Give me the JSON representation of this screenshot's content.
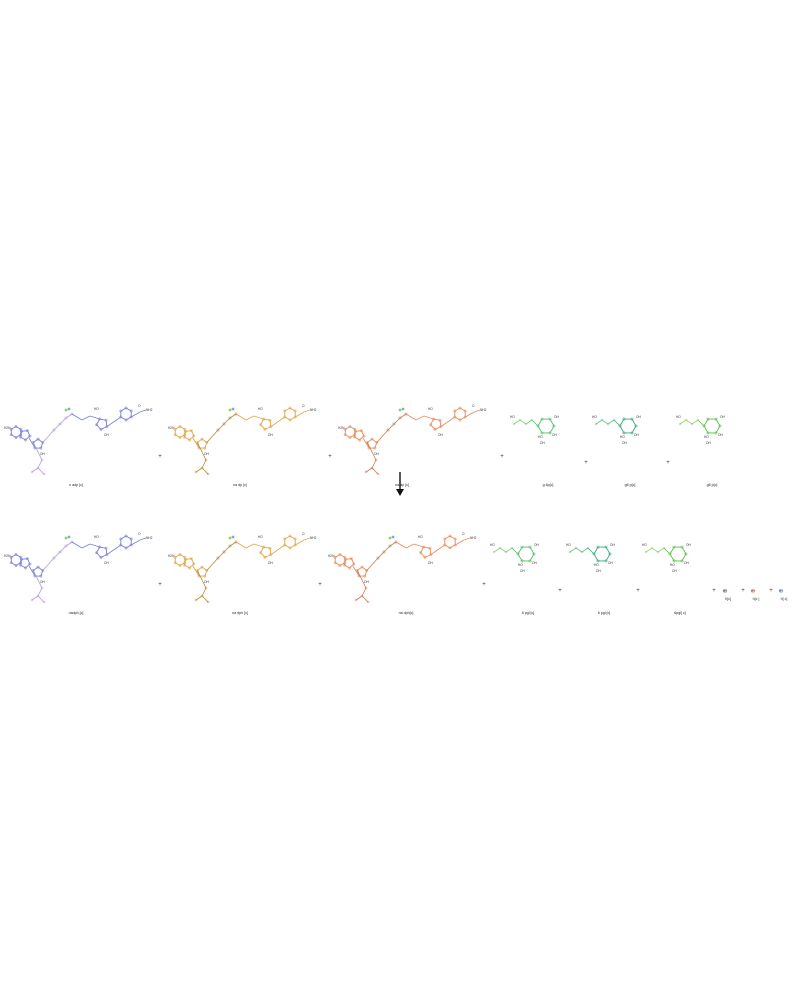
{
  "reaction": {
    "arrow": "reaction-arrow",
    "plus_sign": "+",
    "reactants": [
      {
        "label": "n adp [c]",
        "color": "#7b7fd6",
        "accent": "#b79ad8",
        "kind": "nucleotide"
      },
      {
        "label": "na dp [c]",
        "color": "#e0a54a",
        "accent": "#b08a3a",
        "kind": "nucleotide"
      },
      {
        "label": "na dp [c]",
        "color": "#e78b5a",
        "accent": "#c27a5a",
        "kind": "nucleotide"
      },
      {
        "label": "g 6p[c]",
        "color": "#4fbf6a",
        "accent": "#7ed67a",
        "kind": "sugar"
      },
      {
        "label": "g6 p[c]",
        "color": "#3aa87a",
        "accent": "#6cc48a",
        "kind": "sugar"
      },
      {
        "label": "g6 p[c]",
        "color": "#5bbf4a",
        "accent": "#9ad07a",
        "kind": "sugar"
      }
    ],
    "products": [
      {
        "label": "nadph [c]",
        "color": "#7b7fd6",
        "accent": "#b79ad8",
        "kind": "nucleotide"
      },
      {
        "label": "na dph [c]",
        "color": "#e0a54a",
        "accent": "#b08a3a",
        "kind": "nucleotide"
      },
      {
        "label": "na dph[c]",
        "color": "#e78b5a",
        "accent": "#c27a5a",
        "kind": "nucleotide"
      },
      {
        "label": "6 pgl [c]",
        "color": "#4fbf6a",
        "accent": "#7ed67a",
        "kind": "sugar"
      },
      {
        "label": "6 pgl [c]",
        "color": "#3aa87a",
        "accent": "#6cc48a",
        "kind": "sugar"
      },
      {
        "label": "6pgl[ c]",
        "color": "#5bbf4a",
        "accent": "#9ad07a",
        "kind": "sugar"
      },
      {
        "label": "h[c]",
        "color": "#7b7fd6",
        "accent": "#7b7fd6",
        "kind": "proton"
      },
      {
        "label": "h[c ]",
        "color": "#e78b5a",
        "accent": "#e78b5a",
        "kind": "proton"
      },
      {
        "label": "h[ c]",
        "color": "#6fa8e0",
        "accent": "#6fa8e0",
        "kind": "proton"
      }
    ]
  }
}
